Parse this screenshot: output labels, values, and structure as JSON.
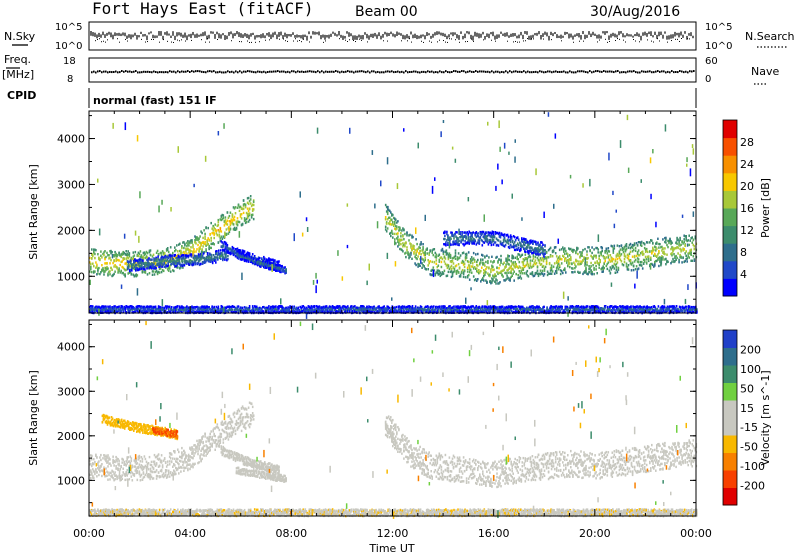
{
  "header": {
    "station": "Fort Hays East (fitACF)",
    "beam": "Beam 00",
    "date": "30/Aug/2016"
  },
  "top_panels": {
    "nsky_label": "N.Sky",
    "nsky_ticks": [
      "10^5",
      "10^0"
    ],
    "nsearch_label": "N.Search",
    "nsearch_ticks": [
      "10^5",
      "10^0"
    ],
    "freq_label": "Freq.",
    "freq_unit": "[MHz]",
    "freq_ticks": [
      "18",
      "8"
    ],
    "nave_label": "Nave",
    "nave_ticks": [
      "60",
      "0"
    ],
    "cpid_label": "CPID",
    "cpid_text": "normal (fast) 151 IF"
  },
  "colors": {
    "power_scale": [
      "#0000ff",
      "#2048c8",
      "#2e6e8c",
      "#3c8c6c",
      "#58a858",
      "#a8c838",
      "#f8c800",
      "#f89000",
      "#f85000",
      "#e00000"
    ],
    "velocity_scale": [
      "#e00000",
      "#f84000",
      "#f88000",
      "#f8b800",
      "#c8c8c0",
      "#c8c8c0",
      "#70d040",
      "#3c8c6c",
      "#2e6e8c",
      "#2040c8"
    ]
  },
  "chart_data": [
    {
      "type": "heatmap",
      "name": "power-panel",
      "ylabel": "Slant Range [km]",
      "y_ticks": [
        "1000",
        "2000",
        "3000",
        "4000"
      ],
      "ylim": [
        200,
        4600
      ],
      "xlim": [
        0,
        24
      ],
      "colorbar_label": "Power [dB]",
      "colorbar_ticks": [
        "4",
        "8",
        "12",
        "16",
        "20",
        "24",
        "28"
      ],
      "colorbar_range": [
        0,
        32
      ],
      "bands": [
        {
          "t": [
            0,
            1,
            2,
            3,
            4,
            5,
            6,
            6.5
          ],
          "r": [
            1350,
            1300,
            1300,
            1350,
            1550,
            2000,
            2400,
            2550
          ],
          "w": 550,
          "level": 21
        },
        {
          "t": [
            1.5,
            3,
            4.5,
            5.5
          ],
          "r": [
            1250,
            1350,
            1400,
            1500
          ],
          "w": 250,
          "level": 11
        },
        {
          "t": [
            5.2,
            6.2,
            7.5
          ],
          "r": [
            1700,
            1450,
            1250
          ],
          "w": 200,
          "level": 8
        },
        {
          "t": [
            5.8,
            6.8,
            7.8
          ],
          "r": [
            1500,
            1300,
            1150
          ],
          "w": 150,
          "level": 9
        },
        {
          "t": [
            11.7,
            12.5,
            13.5,
            15,
            16,
            17.5,
            19,
            20,
            21.5,
            22.5,
            24
          ],
          "r": [
            2300,
            1700,
            1350,
            1250,
            1150,
            1300,
            1400,
            1350,
            1450,
            1550,
            1650
          ],
          "w": 600,
          "level": 19
        },
        {
          "t": [
            14,
            16,
            18
          ],
          "r": [
            1850,
            1850,
            1600
          ],
          "w": 300,
          "level": 10
        },
        {
          "t": [
            0,
            6,
            12,
            18,
            24
          ],
          "r": [
            300,
            300,
            300,
            300,
            300
          ],
          "w": 150,
          "level": 8
        }
      ]
    },
    {
      "type": "heatmap",
      "name": "velocity-panel",
      "xlabel": "Time UT",
      "ylabel": "Slant Range [km]",
      "x_ticks": [
        "00:00",
        "04:00",
        "08:00",
        "12:00",
        "16:00",
        "20:00",
        "00:00"
      ],
      "y_ticks": [
        "1000",
        "2000",
        "3000",
        "4000"
      ],
      "ylim": [
        200,
        4600
      ],
      "xlim": [
        0,
        24
      ],
      "colorbar_label": "Velocity [m s^-1]",
      "colorbar_ticks": [
        "-200",
        "-100",
        "-50",
        "-15",
        "15",
        "50",
        "100",
        "200"
      ],
      "colorbar_range": [
        -250,
        250
      ],
      "bands": [
        {
          "t": [
            0,
            1,
            2,
            3,
            4,
            5,
            6,
            6.5
          ],
          "r": [
            1350,
            1300,
            1300,
            1350,
            1550,
            2000,
            2400,
            2550
          ],
          "w": 550,
          "velocity": 0
        },
        {
          "t": [
            0.5,
            2,
            3.5
          ],
          "r": [
            2400,
            2200,
            2050
          ],
          "w": 200,
          "velocity": -80
        },
        {
          "t": [
            2.5,
            3.5
          ],
          "r": [
            2150,
            2050
          ],
          "w": 150,
          "velocity": -150
        },
        {
          "t": [
            5.2,
            6.2,
            7.5
          ],
          "r": [
            1700,
            1450,
            1250
          ],
          "w": 200,
          "velocity": 30
        },
        {
          "t": [
            5.8,
            6.8,
            7.8
          ],
          "r": [
            1250,
            1150,
            1050
          ],
          "w": 150,
          "velocity": 25
        },
        {
          "t": [
            11.7,
            12.5,
            13.5,
            15,
            16,
            17.5,
            19,
            20,
            21.5,
            22.5,
            24
          ],
          "r": [
            2300,
            1700,
            1350,
            1250,
            1150,
            1300,
            1400,
            1350,
            1450,
            1550,
            1650
          ],
          "w": 600,
          "velocity": 0
        },
        {
          "t": [
            11.7,
            12.1
          ],
          "r": [
            2250,
            1850
          ],
          "w": 150,
          "velocity": 30
        },
        {
          "t": [
            0,
            6,
            12,
            18,
            24
          ],
          "r": [
            300,
            300,
            300,
            300,
            300
          ],
          "w": 150,
          "velocity": -40
        }
      ]
    }
  ]
}
